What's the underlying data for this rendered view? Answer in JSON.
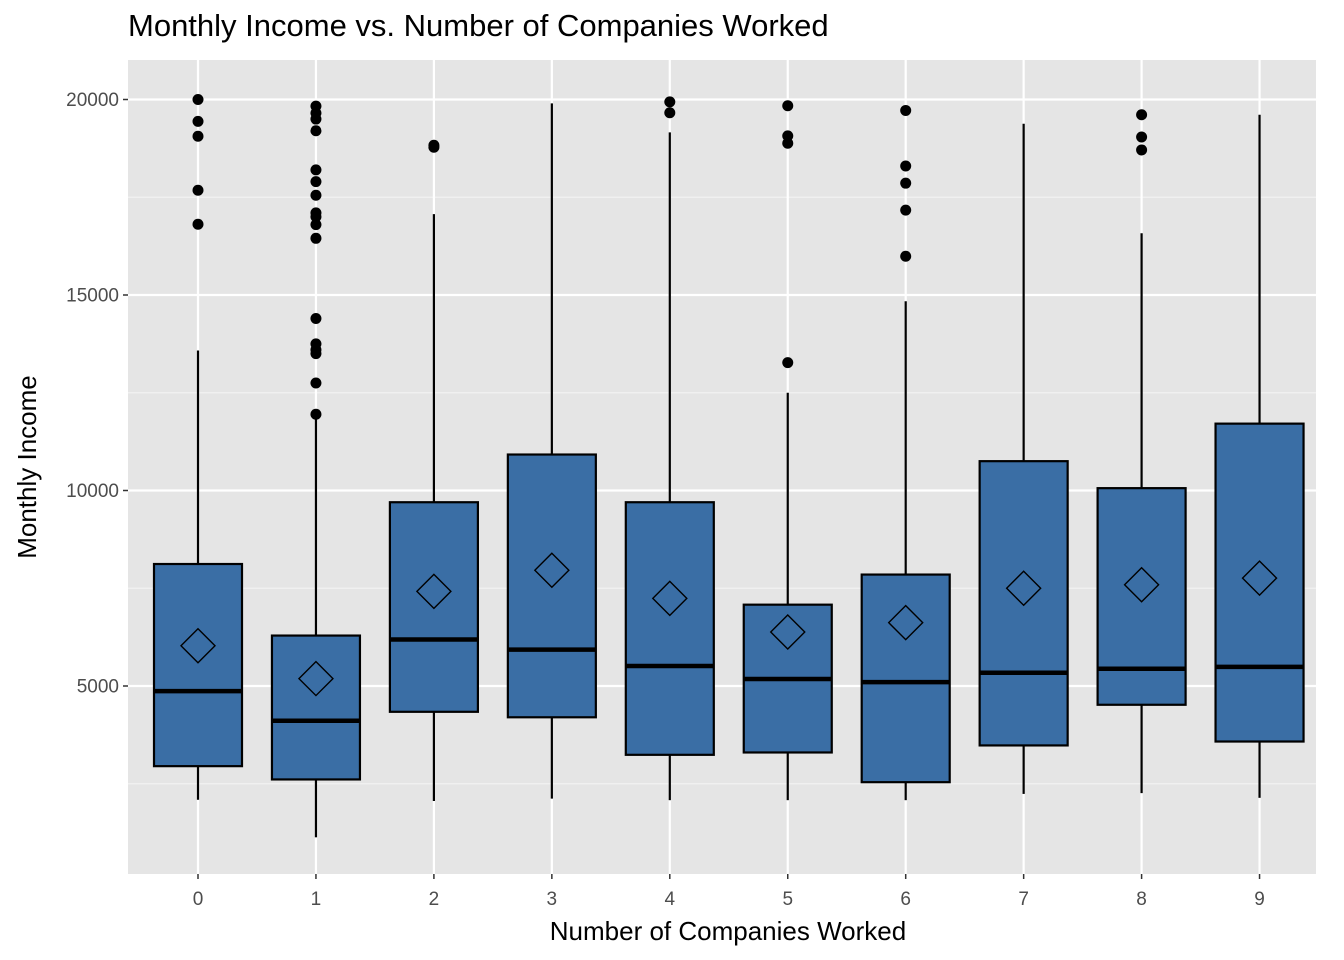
{
  "chart_data": {
    "type": "boxplot",
    "title": "Monthly Income vs. Number of Companies Worked",
    "xlabel": "Number of Companies Worked",
    "ylabel": "Monthly Income",
    "categories": [
      "0",
      "1",
      "2",
      "3",
      "4",
      "5",
      "6",
      "7",
      "8",
      "9"
    ],
    "ylim": [
      900,
      20800
    ],
    "yticks": [
      5000,
      10000,
      15000,
      20000
    ],
    "grid": true,
    "fill_color": "#3a6ea5",
    "background_color": "#e5e5e5",
    "boxes": [
      {
        "category": "0",
        "whisker_low": 2090,
        "q1": 2950,
        "median": 4870,
        "q3": 8120,
        "whisker_high": 13580,
        "mean": 6030,
        "outliers": [
          16810,
          17680,
          19060,
          19440,
          20000
        ]
      },
      {
        "category": "1",
        "whisker_low": 1130,
        "q1": 2610,
        "median": 4110,
        "q3": 6290,
        "whisker_high": 11910,
        "mean": 5190,
        "outliers": [
          11950,
          12750,
          13500,
          13600,
          13750,
          14400,
          16450,
          16800,
          17000,
          17100,
          17550,
          17900,
          18200,
          19200,
          19500,
          19650,
          19830
        ]
      },
      {
        "category": "2",
        "whisker_low": 2060,
        "q1": 4340,
        "median": 6190,
        "q3": 9700,
        "whisker_high": 17070,
        "mean": 7420,
        "outliers": [
          18780,
          18830
        ]
      },
      {
        "category": "3",
        "whisker_low": 2120,
        "q1": 4200,
        "median": 5930,
        "q3": 10920,
        "whisker_high": 19900,
        "mean": 7960,
        "outliers": []
      },
      {
        "category": "4",
        "whisker_low": 2080,
        "q1": 3240,
        "median": 5510,
        "q3": 9700,
        "whisker_high": 19160,
        "mean": 7240,
        "outliers": [
          19660,
          19940
        ]
      },
      {
        "category": "5",
        "whisker_low": 2080,
        "q1": 3300,
        "median": 5180,
        "q3": 7080,
        "whisker_high": 12500,
        "mean": 6380,
        "outliers": [
          13270,
          18880,
          19070,
          19840
        ]
      },
      {
        "category": "6",
        "whisker_low": 2080,
        "q1": 2540,
        "median": 5100,
        "q3": 7850,
        "whisker_high": 14840,
        "mean": 6620,
        "outliers": [
          15990,
          17170,
          17860,
          18300,
          19720
        ]
      },
      {
        "category": "7",
        "whisker_low": 2240,
        "q1": 3480,
        "median": 5340,
        "q3": 10750,
        "whisker_high": 19380,
        "mean": 7500,
        "outliers": []
      },
      {
        "category": "8",
        "whisker_low": 2260,
        "q1": 4520,
        "median": 5440,
        "q3": 10060,
        "whisker_high": 16580,
        "mean": 7590,
        "outliers": [
          18710,
          19040,
          19610
        ]
      },
      {
        "category": "9",
        "whisker_low": 2140,
        "q1": 3580,
        "median": 5490,
        "q3": 11710,
        "whisker_high": 19610,
        "mean": 7760,
        "outliers": []
      }
    ]
  }
}
